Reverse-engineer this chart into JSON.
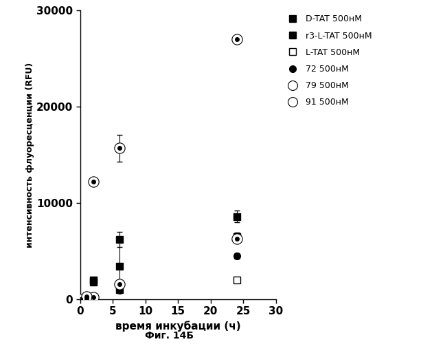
{
  "title": "",
  "xlabel": "время инкубации (ч)",
  "ylabel": "интенсивность флуоресценции (RFU)",
  "caption": "Фиг. 14Б",
  "xlim": [
    0,
    30
  ],
  "ylim": [
    0,
    30000
  ],
  "xticks": [
    0,
    5,
    10,
    15,
    20,
    25,
    30
  ],
  "yticks": [
    0,
    10000,
    20000,
    30000
  ],
  "series": {
    "D-TAT": {
      "x": [
        0,
        1,
        2,
        6,
        24
      ],
      "y": [
        0,
        200,
        2000,
        3400,
        8600
      ],
      "yerr": [
        0,
        0,
        300,
        2500,
        600
      ],
      "label": "D-TAT 500нM",
      "type": "filled_square"
    },
    "r3-L-TAT": {
      "x": [
        0,
        1,
        2,
        6,
        24
      ],
      "y": [
        0,
        200,
        1800,
        6200,
        6500
      ],
      "yerr": [
        0,
        0,
        200,
        800,
        400
      ],
      "label": "r3-L-TAT 500нM",
      "type": "filled_square"
    },
    "L-TAT": {
      "x": [
        0,
        1,
        2,
        6,
        24
      ],
      "y": [
        0,
        100,
        200,
        1000,
        2000
      ],
      "yerr": [
        0,
        0,
        0,
        0,
        0
      ],
      "label": "L-TAT 500нM",
      "type": "open_square"
    },
    "72": {
      "x": [
        0,
        1,
        2,
        6,
        24
      ],
      "y": [
        0,
        100,
        200,
        900,
        4500
      ],
      "yerr": [
        0,
        0,
        0,
        0,
        300
      ],
      "label": "72 500нM",
      "type": "filled_circle"
    },
    "79": {
      "x": [
        0,
        1,
        2,
        6,
        24
      ],
      "y": [
        0,
        100,
        200,
        1600,
        6300
      ],
      "yerr": [
        0,
        0,
        0,
        0,
        300
      ],
      "label": "79 500нM",
      "type": "ring_circle"
    },
    "91": {
      "x": [
        0,
        1,
        2,
        6,
        24
      ],
      "y": [
        0,
        300,
        12200,
        15700,
        27000
      ],
      "yerr": [
        0,
        0,
        0,
        1400,
        300
      ],
      "label": "91 500нM",
      "type": "ring_circle"
    }
  },
  "series_order": [
    "D-TAT",
    "r3-L-TAT",
    "L-TAT",
    "72",
    "79",
    "91"
  ]
}
